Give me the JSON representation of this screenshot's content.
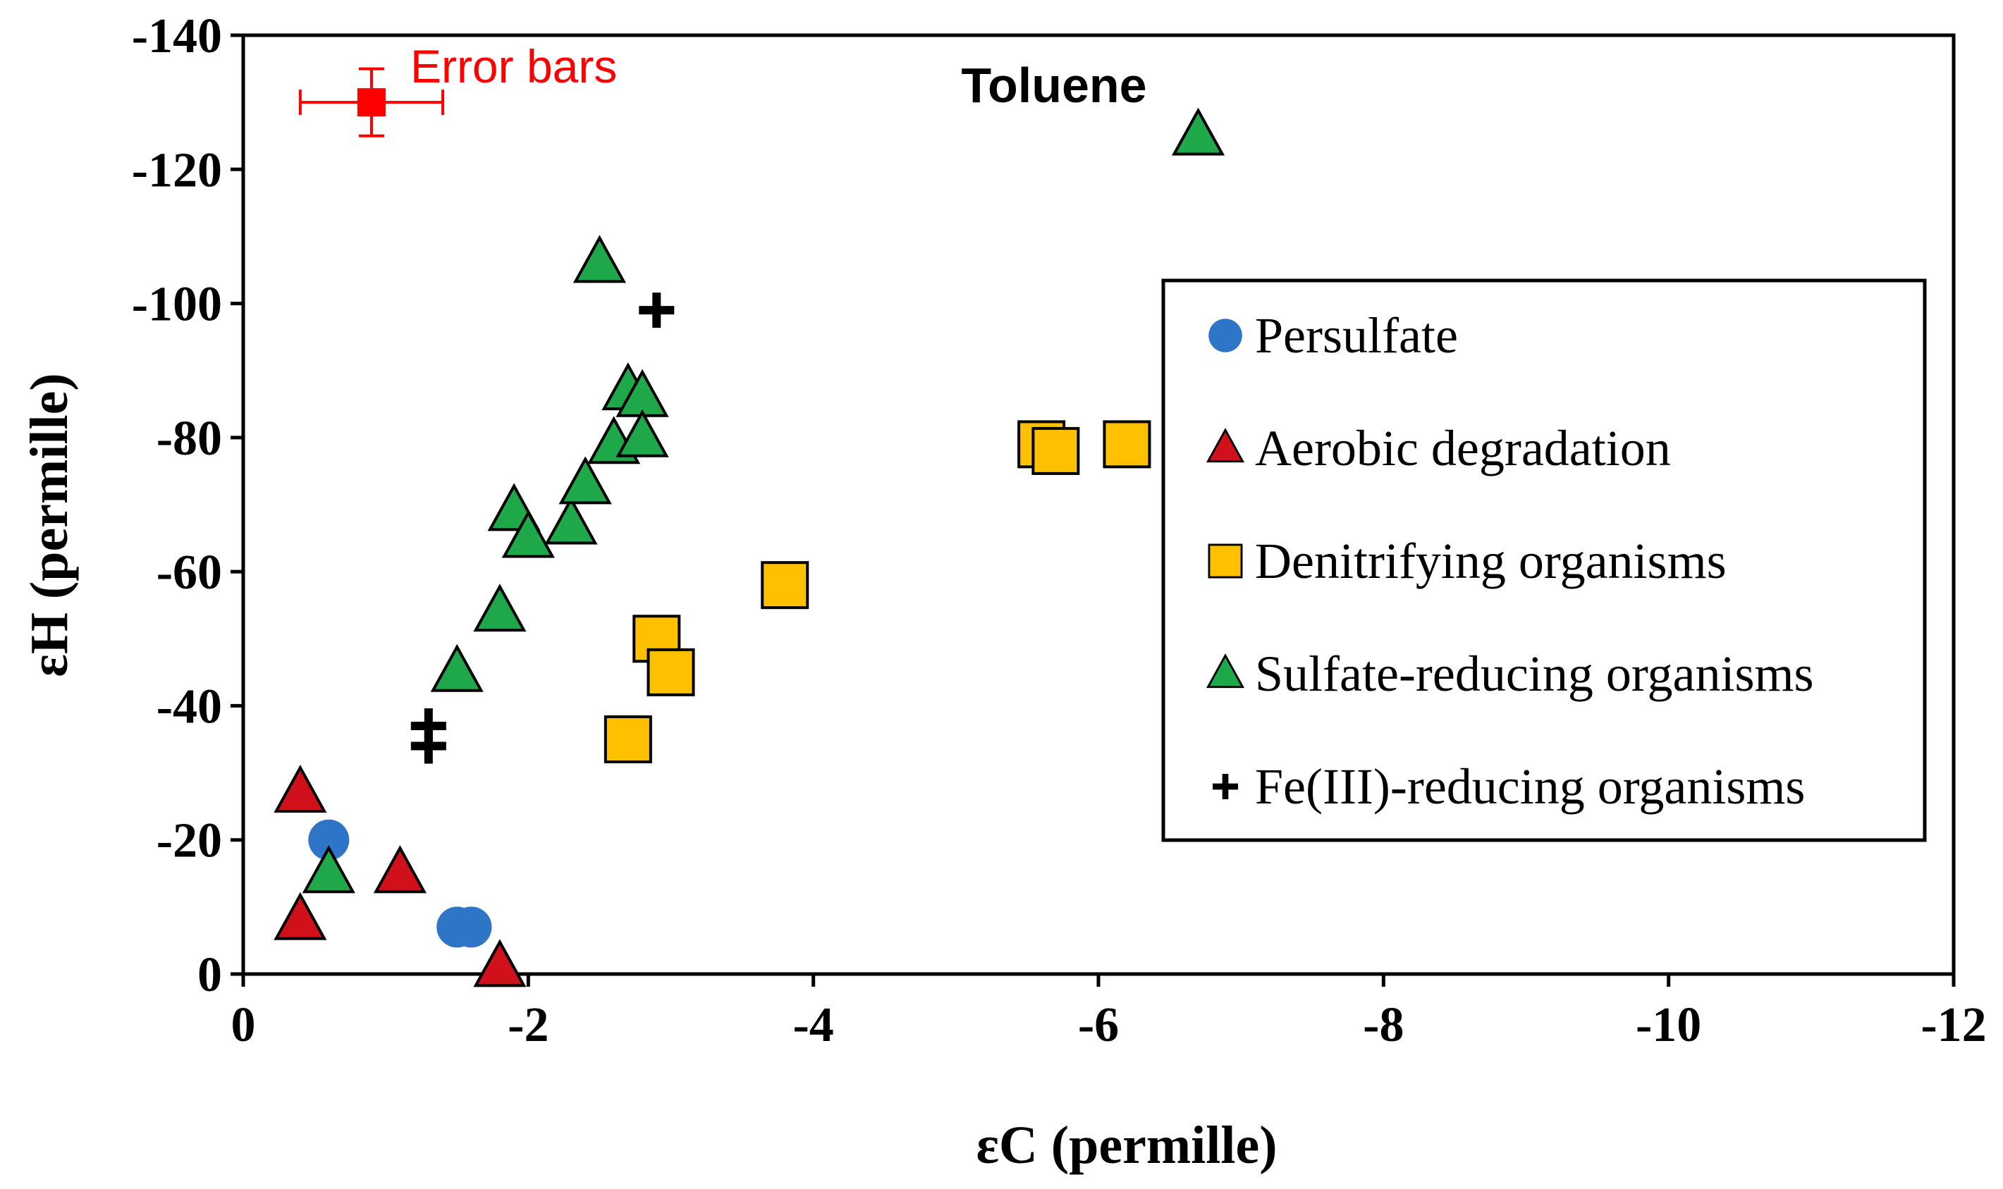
{
  "chart_data": {
    "type": "scatter",
    "title": "Toluene",
    "xlabel": "εC (permille)",
    "ylabel": "εH (permille)",
    "xlim": [
      0,
      -12
    ],
    "ylim": [
      0,
      -140
    ],
    "xticks": [
      0,
      -2,
      -4,
      -6,
      -8,
      -10,
      -12
    ],
    "yticks": [
      0,
      -20,
      -40,
      -60,
      -80,
      -100,
      -120,
      -140
    ],
    "xtick_labels": [
      "0",
      "-2",
      "-4",
      "-6",
      "-8",
      "-10",
      "-12"
    ],
    "ytick_labels": [
      "0",
      "-20",
      "-40",
      "-60",
      "-80",
      "-100",
      "-120",
      "-140"
    ],
    "grid": false,
    "legend_position": "right",
    "series": [
      {
        "name": "Persulfate",
        "marker": "circle",
        "color": "#2E75C8",
        "points": [
          [
            -0.6,
            -20
          ],
          [
            -1.5,
            -7
          ],
          [
            -1.6,
            -7
          ]
        ]
      },
      {
        "name": "Aerobic degradation",
        "marker": "triangle",
        "color": "#D0101A",
        "points": [
          [
            -0.4,
            -27
          ],
          [
            -0.4,
            -8
          ],
          [
            -1.1,
            -15
          ],
          [
            -1.8,
            -1
          ]
        ]
      },
      {
        "name": "Denitrifying organisms",
        "marker": "square",
        "color": "#FFC000",
        "points": [
          [
            -2.7,
            -35
          ],
          [
            -2.9,
            -50
          ],
          [
            -3.0,
            -45
          ],
          [
            -3.8,
            -58
          ],
          [
            -5.6,
            -79
          ],
          [
            -5.7,
            -78
          ],
          [
            -6.2,
            -79
          ]
        ]
      },
      {
        "name": "Sulfate-reducing organisms",
        "marker": "triangle",
        "color": "#1FA84A",
        "points": [
          [
            -0.6,
            -15
          ],
          [
            -1.5,
            -45
          ],
          [
            -1.8,
            -54
          ],
          [
            -1.9,
            -69
          ],
          [
            -2.0,
            -65
          ],
          [
            -2.3,
            -67
          ],
          [
            -2.4,
            -73
          ],
          [
            -2.5,
            -106
          ],
          [
            -2.6,
            -79
          ],
          [
            -2.7,
            -87
          ],
          [
            -2.8,
            -86
          ],
          [
            -2.8,
            -80
          ],
          [
            -6.7,
            -125
          ]
        ]
      },
      {
        "name": "Fe(III)-reducing organisms",
        "marker": "plus",
        "color": "#000000",
        "points": [
          [
            -1.3,
            -34
          ],
          [
            -1.3,
            -37
          ],
          [
            -2.9,
            -99
          ]
        ]
      }
    ],
    "error_bar_example": {
      "label": "Error bars",
      "color": "#FF0000",
      "x": -0.9,
      "y": -130,
      "x_error": 0.5,
      "y_error": 5
    }
  }
}
